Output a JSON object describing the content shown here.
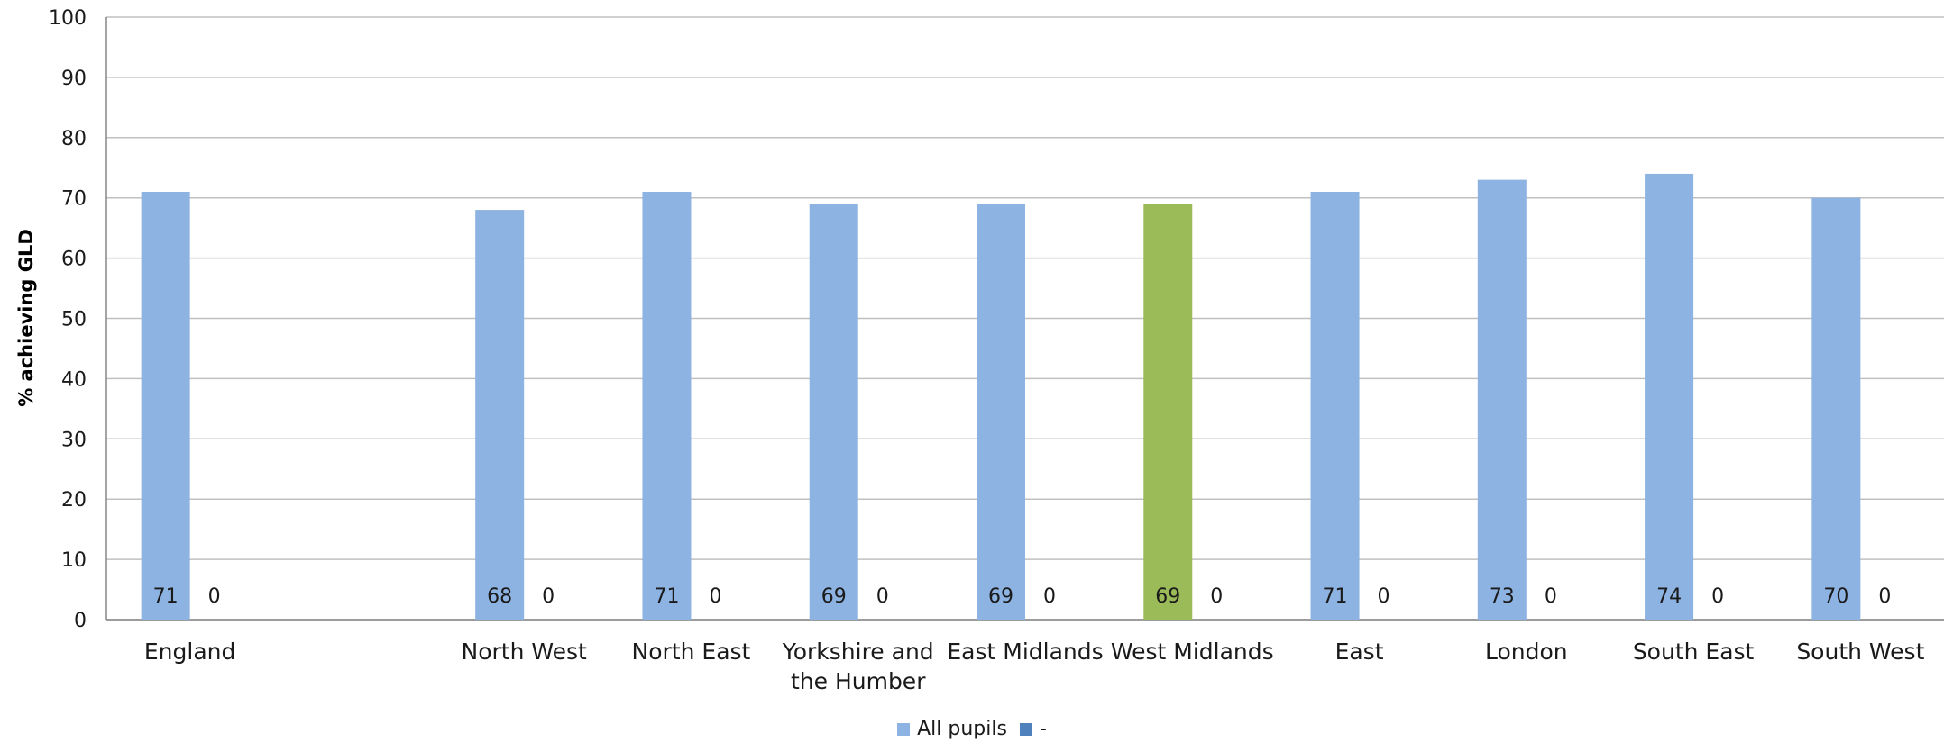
{
  "chart_data": {
    "type": "bar",
    "ylabel": "% achieving GLD",
    "ylim": [
      0,
      100
    ],
    "yticks": [
      "0",
      "10",
      "20",
      "30",
      "40",
      "50",
      "60",
      "70",
      "80",
      "90",
      "100"
    ],
    "grid": true,
    "legend_position": "bottom",
    "categories": [
      [
        "England"
      ],
      [
        ""
      ],
      [
        "North West"
      ],
      [
        "North East"
      ],
      [
        "Yorkshire and",
        "the Humber"
      ],
      [
        "East Midlands"
      ],
      [
        "West Midlands"
      ],
      [
        "East"
      ],
      [
        "London"
      ],
      [
        "South East"
      ],
      [
        "South West"
      ]
    ],
    "series": [
      {
        "name": "All pupils",
        "color": "#8DB3E2",
        "values": [
          71,
          null,
          68,
          71,
          69,
          69,
          69,
          71,
          73,
          74,
          70
        ],
        "point_colors": [
          "#8DB3E2",
          null,
          "#8DB3E2",
          "#8DB3E2",
          "#8DB3E2",
          "#8DB3E2",
          "#9BBB59",
          "#8DB3E2",
          "#8DB3E2",
          "#8DB3E2",
          "#8DB3E2"
        ]
      },
      {
        "name": "-",
        "color": "#4F81BD",
        "values": [
          0,
          null,
          0,
          0,
          0,
          0,
          0,
          0,
          0,
          0,
          0
        ]
      }
    ],
    "colors": {
      "gridline": "#C0C0C0",
      "axis": "#868686",
      "highlight": "#9BBB59"
    }
  }
}
